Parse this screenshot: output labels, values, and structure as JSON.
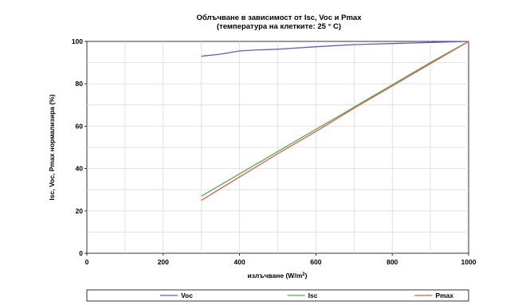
{
  "chart_data": {
    "type": "line",
    "title": "Облъчване в зависимост от Isc, Voc и Pmax",
    "subtitle": "(температура на клетките: 25 ° C)",
    "xlabel": "излъчване (W/m²)",
    "xlabel_parts": {
      "base": "излъчване (W/m",
      "sup": "2",
      "tail": ")"
    },
    "ylabel": "Isc, Voc, Pmax нормализира (%)",
    "xlim": [
      0,
      1000
    ],
    "ylim": [
      0,
      100
    ],
    "x_ticks": [
      0,
      200,
      400,
      600,
      800,
      1000
    ],
    "x_tick_labels": [
      "0",
      "200",
      "400",
      "600",
      "800",
      "1000"
    ],
    "y_ticks": [
      0,
      20,
      40,
      60,
      80,
      100
    ],
    "y_tick_labels": [
      "0",
      "20",
      "40",
      "60",
      "80",
      "100"
    ],
    "grid": true,
    "legend_position": "bottom",
    "series": [
      {
        "name": "Voc",
        "color": "#5b5bd6",
        "x": [
          300,
          350,
          400,
          450,
          500,
          600,
          700,
          800,
          900,
          1000
        ],
        "y": [
          93,
          94,
          95.5,
          96,
          96.3,
          97.5,
          98.5,
          99,
          99.5,
          100
        ]
      },
      {
        "name": "Isc",
        "color": "#4caf50",
        "x": [
          300,
          400,
          500,
          600,
          700,
          800,
          900,
          1000
        ],
        "y": [
          27,
          37.5,
          48,
          58.5,
          69,
          79.5,
          90,
          100
        ]
      },
      {
        "name": "Pmax",
        "color": "#e0584e",
        "x": [
          300,
          400,
          500,
          600,
          700,
          800,
          900,
          1000
        ],
        "y": [
          25,
          36,
          47,
          57.5,
          68.5,
          79,
          89.5,
          100
        ]
      }
    ]
  }
}
